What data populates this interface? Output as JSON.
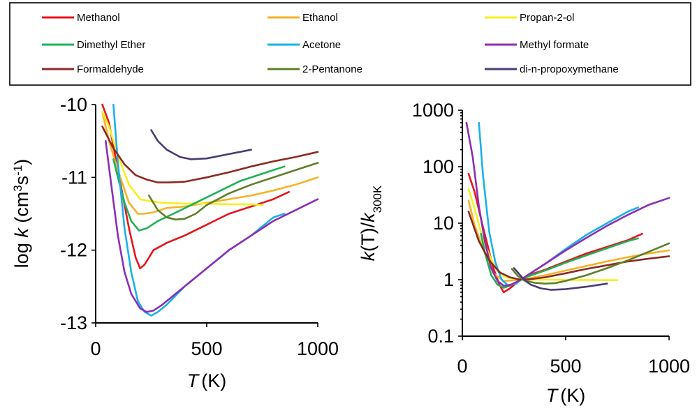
{
  "legend": [
    {
      "name": "Methanol",
      "color": "#e8141c"
    },
    {
      "name": "Ethanol",
      "color": "#f5b225"
    },
    {
      "name": "Propan-2-ol",
      "color": "#f5f01c"
    },
    {
      "name": "Dimethyl Ether",
      "color": "#1fb157"
    },
    {
      "name": "Acetone",
      "color": "#1ab0ea"
    },
    {
      "name": "Methyl formate",
      "color": "#8b2fb3"
    },
    {
      "name": "Formaldehyde",
      "color": "#8c2a22"
    },
    {
      "name": "2-Pentanone",
      "color": "#5e7f28"
    },
    {
      "name": "di-n-propoxymethane",
      "color": "#4b3b73"
    }
  ],
  "chart_data": [
    {
      "type": "line",
      "xlabel_italic": "T",
      "xlabel_unit": "(K)",
      "ylabel_text": "log ",
      "ylabel_italic": "k",
      "ylabel_unit": " (cm",
      "ylabel_sup1": "3",
      "ylabel_mid": "s",
      "ylabel_sup2": "-1",
      "ylabel_end": ")",
      "xlim": [
        0,
        1000
      ],
      "ylim": [
        -13,
        -10
      ],
      "xticks": [
        0,
        500,
        1000
      ],
      "xtick_labels": [
        "0",
        "500",
        "1000"
      ],
      "yticks": [
        -10,
        -11,
        -12,
        -13
      ],
      "ytick_labels": [
        "-10",
        "-11",
        "-12",
        "-13"
      ],
      "series": [
        {
          "name": "Methanol",
          "color": "#e8141c",
          "x": [
            30,
            60,
            100,
            150,
            180,
            200,
            220,
            260,
            320,
            400,
            500,
            600,
            700,
            800,
            870
          ],
          "y": [
            -10.0,
            -10.25,
            -10.9,
            -11.7,
            -12.1,
            -12.25,
            -12.2,
            -12.0,
            -11.9,
            -11.8,
            -11.65,
            -11.5,
            -11.4,
            -11.3,
            -11.2
          ]
        },
        {
          "name": "Ethanol",
          "color": "#f5b225",
          "x": [
            30,
            60,
            100,
            150,
            190,
            220,
            260,
            320,
            400,
            500,
            600,
            700,
            800,
            900,
            1000
          ],
          "y": [
            -10.1,
            -10.5,
            -10.9,
            -11.35,
            -11.5,
            -11.5,
            -11.48,
            -11.42,
            -11.4,
            -11.35,
            -11.3,
            -11.25,
            -11.18,
            -11.1,
            -11.0
          ]
        },
        {
          "name": "Propan-2-ol",
          "color": "#f5f01c",
          "x": [
            30,
            60,
            100,
            150,
            200,
            250,
            300,
            400,
            500,
            600,
            700,
            750
          ],
          "y": [
            -10.1,
            -10.3,
            -10.7,
            -11.1,
            -11.3,
            -11.33,
            -11.35,
            -11.36,
            -11.36,
            -11.37,
            -11.37,
            -11.38
          ]
        },
        {
          "name": "Dimethyl Ether",
          "color": "#1fb157",
          "x": [
            80,
            100,
            130,
            160,
            195,
            230,
            280,
            350,
            450,
            550,
            650,
            750,
            850
          ],
          "y": [
            -10.75,
            -11.0,
            -11.35,
            -11.6,
            -11.73,
            -11.7,
            -11.6,
            -11.5,
            -11.35,
            -11.2,
            -11.05,
            -10.95,
            -10.85
          ]
        },
        {
          "name": "Acetone",
          "color": "#1ab0ea",
          "x": [
            80,
            100,
            130,
            160,
            190,
            220,
            250,
            280,
            320,
            400,
            500,
            600,
            700,
            800,
            850
          ],
          "y": [
            -10.0,
            -10.8,
            -11.7,
            -12.3,
            -12.7,
            -12.85,
            -12.9,
            -12.85,
            -12.75,
            -12.5,
            -12.25,
            -12.0,
            -11.8,
            -11.55,
            -11.5
          ]
        },
        {
          "name": "Methyl formate",
          "color": "#8b2fb3",
          "x": [
            45,
            70,
            100,
            130,
            160,
            200,
            230,
            260,
            300,
            400,
            500,
            600,
            700,
            800,
            900,
            1000
          ],
          "y": [
            -10.5,
            -11.1,
            -11.8,
            -12.3,
            -12.6,
            -12.8,
            -12.85,
            -12.83,
            -12.75,
            -12.5,
            -12.25,
            -12.0,
            -11.8,
            -11.6,
            -11.45,
            -11.3
          ]
        },
        {
          "name": "Formaldehyde",
          "color": "#8c2a22",
          "x": [
            30,
            80,
            130,
            180,
            230,
            280,
            330,
            400,
            500,
            600,
            700,
            800,
            900,
            1000
          ],
          "y": [
            -10.3,
            -10.6,
            -10.82,
            -10.97,
            -11.03,
            -11.07,
            -11.07,
            -11.06,
            -11.0,
            -10.93,
            -10.85,
            -10.78,
            -10.72,
            -10.65
          ]
        },
        {
          "name": "2-Pentanone",
          "color": "#5e7f28",
          "x": [
            240,
            280,
            320,
            360,
            400,
            450,
            500,
            600,
            700,
            800,
            900,
            1000
          ],
          "y": [
            -11.25,
            -11.45,
            -11.55,
            -11.58,
            -11.57,
            -11.5,
            -11.38,
            -11.22,
            -11.1,
            -11.0,
            -10.9,
            -10.8
          ]
        },
        {
          "name": "di-n-propoxymethane",
          "color": "#4b3b73",
          "x": [
            250,
            280,
            320,
            380,
            430,
            500,
            600,
            700
          ],
          "y": [
            -10.35,
            -10.5,
            -10.62,
            -10.72,
            -10.75,
            -10.74,
            -10.68,
            -10.62
          ]
        }
      ]
    },
    {
      "type": "line",
      "scale_y": "log",
      "xlabel_italic": "T",
      "xlabel_unit": "(K)",
      "ylabel_italic_k": "k",
      "ylabel_paren_T": "(T)/",
      "ylabel_italic_k2": "k",
      "ylabel_sub": "300K",
      "xlim": [
        0,
        1000
      ],
      "ylim": [
        0.1,
        1000
      ],
      "xticks": [
        0,
        500,
        1000
      ],
      "xtick_labels": [
        "0",
        "500",
        "1000"
      ],
      "yticks": [
        1000,
        100,
        10,
        1,
        0.1
      ],
      "ytick_labels": [
        "1000",
        "100",
        "10",
        "1",
        "0.1"
      ],
      "series": [
        {
          "name": "Methanol",
          "color": "#e8141c",
          "x": [
            30,
            60,
            100,
            150,
            180,
            200,
            230,
            280,
            320,
            400,
            500,
            600,
            700,
            800,
            870
          ],
          "y": [
            75,
            35,
            8.5,
            1.6,
            0.8,
            0.6,
            0.7,
            1.0,
            1.2,
            1.5,
            2.1,
            2.9,
            3.8,
            5.0,
            6.5
          ]
        },
        {
          "name": "Ethanol",
          "color": "#f5b225",
          "x": [
            30,
            60,
            100,
            150,
            200,
            240,
            280,
            320,
            400,
            500,
            600,
            700,
            800,
            900,
            1000
          ],
          "y": [
            25,
            9,
            3.5,
            1.3,
            0.95,
            0.97,
            1.0,
            1.05,
            1.2,
            1.45,
            1.75,
            2.1,
            2.5,
            2.9,
            3.3
          ]
        },
        {
          "name": "Propan-2-ol",
          "color": "#f5f01c",
          "x": [
            30,
            60,
            100,
            150,
            200,
            250,
            300,
            400,
            500,
            600,
            700,
            750
          ],
          "y": [
            40,
            18,
            5.0,
            1.9,
            1.15,
            1.03,
            1.0,
            1.0,
            0.99,
            0.99,
            0.98,
            0.98
          ]
        },
        {
          "name": "Dimethyl Ether",
          "color": "#1fb157",
          "x": [
            90,
            110,
            140,
            170,
            200,
            230,
            270,
            320,
            400,
            500,
            600,
            700,
            800,
            850
          ],
          "y": [
            6.5,
            2.9,
            1.2,
            0.82,
            0.72,
            0.78,
            0.95,
            1.15,
            1.45,
            2.0,
            2.7,
            3.6,
            4.8,
            5.4
          ]
        },
        {
          "name": "Acetone",
          "color": "#1ab0ea",
          "x": [
            80,
            100,
            130,
            160,
            190,
            220,
            260,
            300,
            400,
            500,
            600,
            700,
            800,
            850
          ],
          "y": [
            600,
            70,
            7,
            2.0,
            1.0,
            0.8,
            0.85,
            1.1,
            1.9,
            3.5,
            6.2,
            10,
            16,
            19
          ]
        },
        {
          "name": "Methyl formate",
          "color": "#8b2fb3",
          "x": [
            20,
            50,
            80,
            110,
            140,
            170,
            200,
            230,
            260,
            300,
            400,
            500,
            600,
            700,
            800,
            900,
            1000
          ],
          "y": [
            600,
            150,
            20,
            4.5,
            1.6,
            0.95,
            0.78,
            0.8,
            0.9,
            1.1,
            1.9,
            3.3,
            5.5,
            9,
            14,
            21,
            28
          ]
        },
        {
          "name": "Formaldehyde",
          "color": "#8c2a22",
          "x": [
            30,
            80,
            130,
            180,
            230,
            280,
            330,
            400,
            500,
            600,
            700,
            800,
            900,
            1000
          ],
          "y": [
            16,
            4.8,
            2.2,
            1.35,
            1.1,
            1.0,
            1.02,
            1.1,
            1.3,
            1.55,
            1.8,
            2.1,
            2.35,
            2.6
          ]
        },
        {
          "name": "2-Pentanone",
          "color": "#5e7f28",
          "x": [
            240,
            270,
            300,
            350,
            400,
            450,
            500,
            600,
            700,
            800,
            900,
            1000
          ],
          "y": [
            1.55,
            1.15,
            0.97,
            0.88,
            0.85,
            0.87,
            0.95,
            1.2,
            1.6,
            2.2,
            3.1,
            4.4
          ]
        },
        {
          "name": "di-n-propoxymethane",
          "color": "#4b3b73",
          "x": [
            250,
            280,
            300,
            330,
            380,
            430,
            500,
            600,
            700
          ],
          "y": [
            1.6,
            1.2,
            0.98,
            0.82,
            0.7,
            0.66,
            0.68,
            0.75,
            0.85
          ]
        }
      ]
    }
  ]
}
